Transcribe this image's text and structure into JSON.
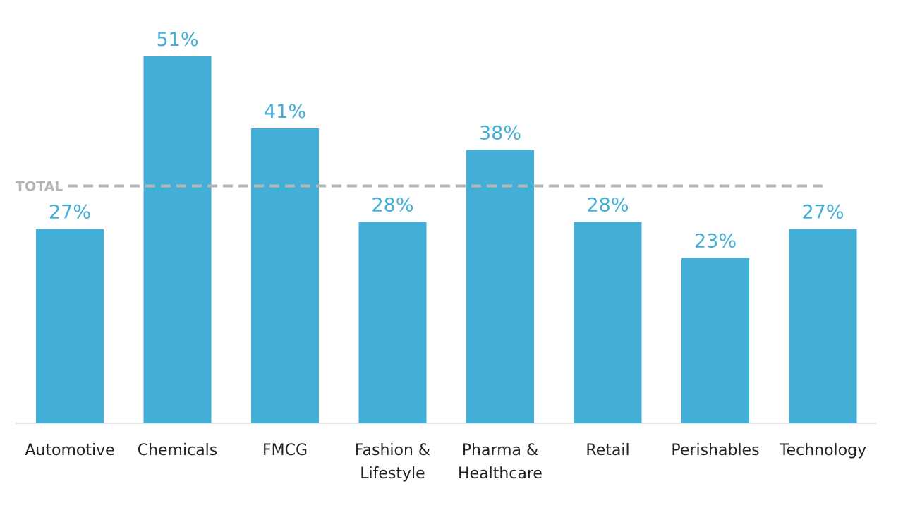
{
  "chart_data": {
    "type": "bar",
    "categories": [
      [
        "Automotive"
      ],
      [
        "Chemicals"
      ],
      [
        "FMCG"
      ],
      [
        "Fashion &",
        "Lifestyle"
      ],
      [
        "Pharma &",
        "Healthcare"
      ],
      [
        "Retail"
      ],
      [
        "Perishables"
      ],
      [
        "Technology"
      ]
    ],
    "values": [
      27,
      51,
      41,
      28,
      38,
      28,
      23,
      27
    ],
    "value_labels": [
      "27%",
      "51%",
      "41%",
      "28%",
      "38%",
      "28%",
      "23%",
      "27%"
    ],
    "reference_line": {
      "label": "TOTAL",
      "value": 33
    },
    "ylim": [
      0,
      51
    ],
    "grid": false,
    "legend": "none",
    "colors": {
      "bar": "#43AFD6",
      "value_label": "#43AFD6",
      "reference": "#B5B5B5",
      "axis": "#DDDDDD",
      "category_label": "#222222"
    }
  }
}
